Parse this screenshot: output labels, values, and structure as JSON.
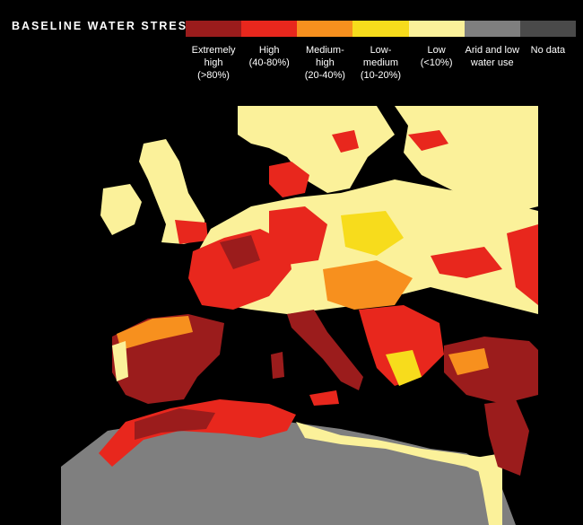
{
  "legend": {
    "title": "BASELINE WATER STRESS",
    "categories": [
      {
        "key": "extremely_high",
        "label": "Extremely\nhigh\n(>80%)",
        "color": "#9b1c1c"
      },
      {
        "key": "high",
        "label": "High\n(40-80%)",
        "color": "#e8271d"
      },
      {
        "key": "medium_high",
        "label": "Medium-\nhigh\n(20-40%)",
        "color": "#f7901e"
      },
      {
        "key": "low_medium",
        "label": "Low-\nmedium\n(10-20%)",
        "color": "#f7dc1c"
      },
      {
        "key": "low",
        "label": "Low\n(<10%)",
        "color": "#fbf19a"
      },
      {
        "key": "arid",
        "label": "Arid and low\nwater use",
        "color": "#7f7f7f"
      },
      {
        "key": "no_data",
        "label": "No data",
        "color": "#4a4a4a"
      }
    ]
  },
  "map": {
    "region": "Europe, North Africa and Middle East",
    "background_color": "#000000"
  }
}
